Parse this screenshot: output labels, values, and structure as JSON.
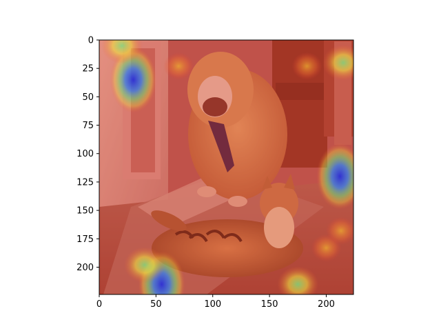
{
  "chart_data": {
    "type": "heatmap",
    "title": "",
    "xlabel": "",
    "ylabel": "",
    "xlim": [
      0,
      224
    ],
    "ylim": [
      224,
      0
    ],
    "y_axis_inverted": true,
    "grid": false,
    "colormap": "jet",
    "overlay_alpha": "semi-transparent heatmap over photo",
    "background_photo": "bulldog sitting behind a tabby cat lying on a rug near a doorway",
    "x_ticks": [
      0,
      50,
      100,
      150,
      200
    ],
    "x_tick_labels": [
      "0",
      "50",
      "100",
      "150",
      "200"
    ],
    "y_ticks": [
      0,
      25,
      50,
      75,
      100,
      125,
      150,
      175,
      200
    ],
    "y_tick_labels": [
      "0",
      "25",
      "50",
      "75",
      "100",
      "125",
      "150",
      "175",
      "200"
    ],
    "hotspots": [
      {
        "x": 30,
        "y": 35,
        "level": "low",
        "color": "#3a3fd0"
      },
      {
        "x": 212,
        "y": 120,
        "level": "low",
        "color": "#4a5ad8"
      },
      {
        "x": 55,
        "y": 215,
        "level": "low",
        "color": "#4f6fe0"
      },
      {
        "x": 175,
        "y": 215,
        "level": "mid",
        "color": "#7fd07f"
      },
      {
        "x": 40,
        "y": 198,
        "level": "mid",
        "color": "#e0e040"
      },
      {
        "x": 20,
        "y": 5,
        "level": "mid",
        "color": "#e8e050"
      },
      {
        "x": 215,
        "y": 20,
        "level": "mid",
        "color": "#e0c040"
      },
      {
        "x": 70,
        "y": 23,
        "level": "high",
        "color": "#f0a030"
      },
      {
        "x": 183,
        "y": 23,
        "level": "high",
        "color": "#f0a030"
      },
      {
        "x": 200,
        "y": 183,
        "level": "high",
        "color": "#f07030"
      },
      {
        "x": 213,
        "y": 168,
        "level": "high",
        "color": "#f07030"
      }
    ]
  }
}
